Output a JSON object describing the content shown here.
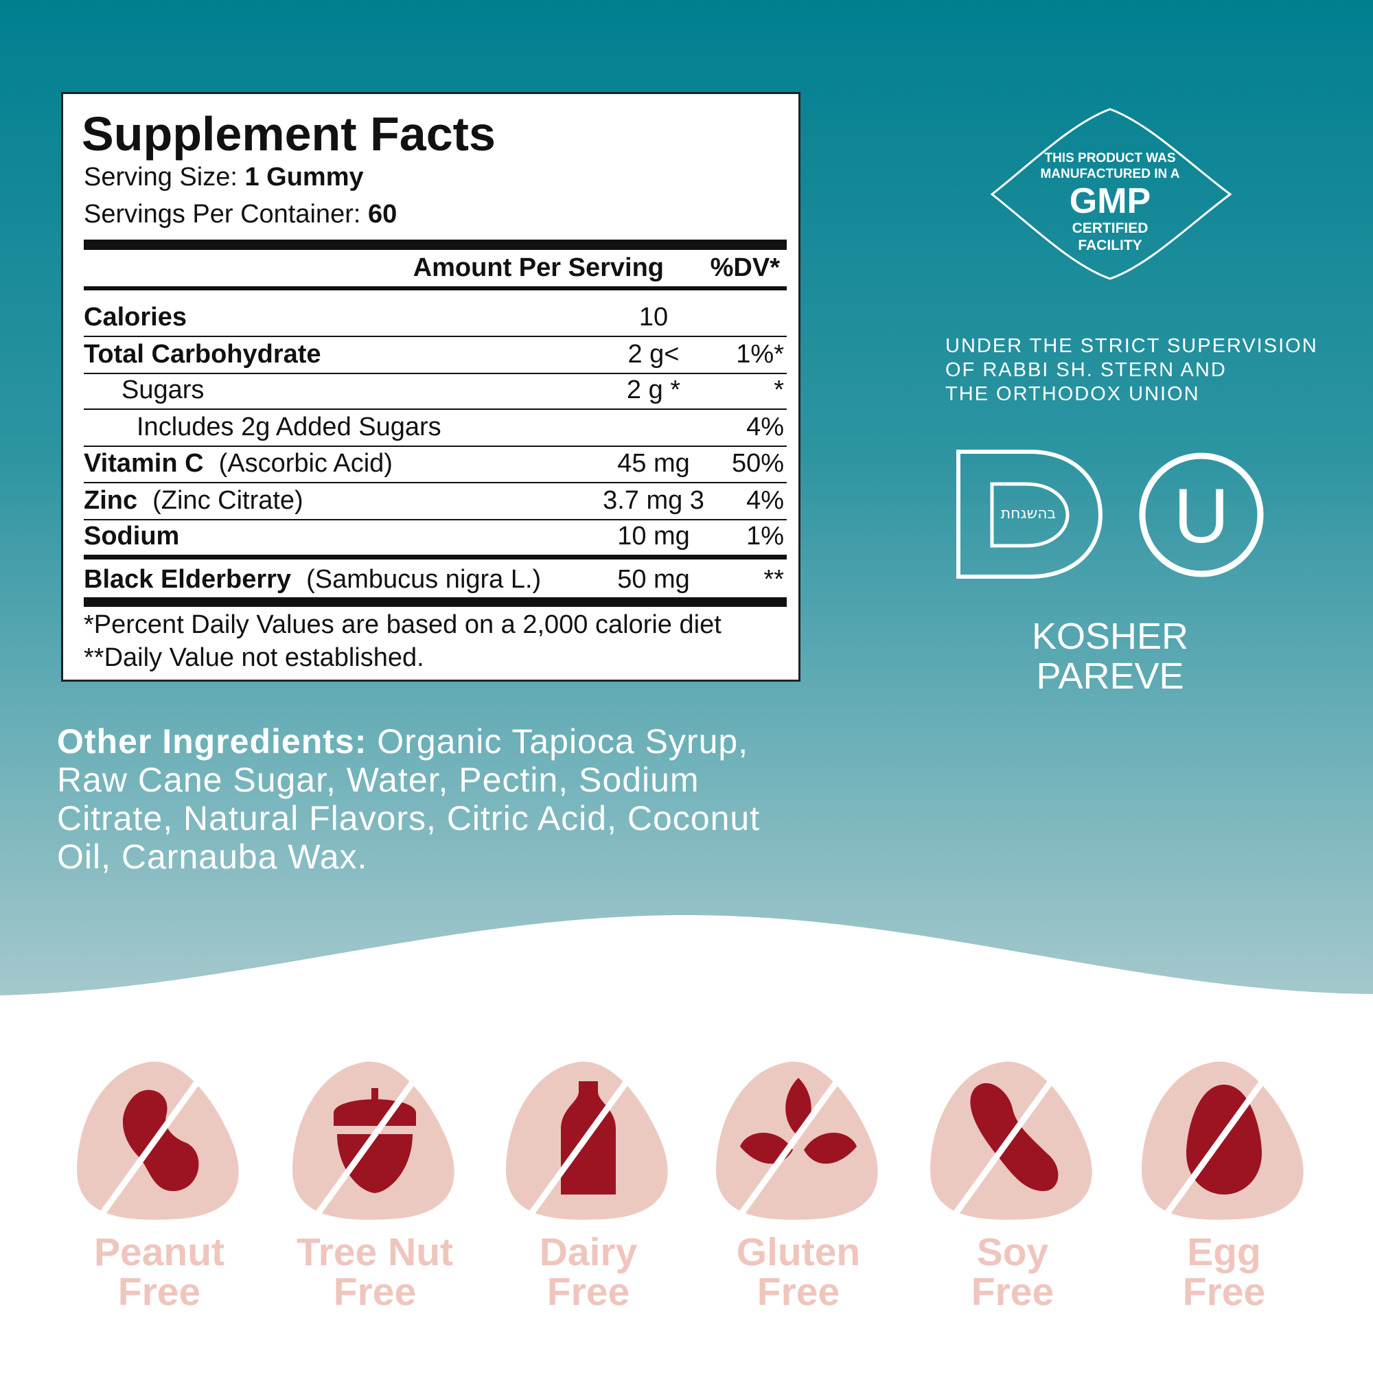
{
  "supplement_facts": {
    "title": "Supplement Facts",
    "serving_size": {
      "label": "Serving Size:",
      "value": "1 Gummy"
    },
    "servings_per_container": {
      "label": "Servings Per Container:",
      "value": "60"
    },
    "columns": {
      "amount": "Amount Per Serving",
      "dv": "%DV*"
    },
    "rows": [
      {
        "name": "Calories",
        "amount": "10"
      },
      {
        "name": "Total Carbohydrate",
        "amount": "2 g<",
        "dv": "1%*"
      },
      {
        "name": "Sugars",
        "amount": "2 g *",
        "dv": "*"
      },
      {
        "name": "Includes 2g Added Sugars",
        "dv": "4%"
      },
      {
        "name": "Vitamin C",
        "detail": "(Ascorbic Acid)",
        "amount": "45 mg",
        "dv": "50%"
      },
      {
        "name": "Zinc",
        "detail": "(Zinc Citrate)",
        "amount": "3.7 mg 3",
        "dv": "4%"
      },
      {
        "name": "Sodium",
        "amount": "10 mg",
        "dv": "1%"
      },
      {
        "name": "Black Elderberry",
        "detail": "(Sambucus nigra L.)",
        "amount": "50 mg",
        "dv": "**"
      }
    ],
    "footnotes": [
      "*Percent Daily Values are based on a 2,000 calorie diet",
      "**Daily Value not established."
    ]
  },
  "other_ingredients": {
    "label": "Other Ingredients:",
    "text": "Organic Tapioca Syrup, Raw Cane Sugar, Water, Pectin, Sodium Citrate, Natural Flavors, Citric Acid, Coconut Oil, Carnauba Wax."
  },
  "gmp_badge": {
    "lines": [
      "THIS PRODUCT WAS",
      "MANUFACTURED IN A"
    ],
    "emblem": "GMP",
    "footer": [
      "CERTIFIED",
      "FACILITY"
    ]
  },
  "supervision": [
    "UNDER THE STRICT SUPERVISION",
    "OF RABBI SH. STERN AND",
    "THE ORTHODOX UNION"
  ],
  "kosher_symbols": {
    "d_center": "בהשגחת",
    "u": "U"
  },
  "kosher": [
    "KOSHER",
    "PAREVE"
  ],
  "allergens": [
    {
      "name": "Peanut",
      "status": "Free"
    },
    {
      "name": "Tree Nut",
      "status": "Free"
    },
    {
      "name": "Dairy",
      "status": "Free"
    },
    {
      "name": "Gluten",
      "status": "Free"
    },
    {
      "name": "Soy",
      "status": "Free"
    },
    {
      "name": "Egg",
      "status": "Free"
    }
  ]
}
